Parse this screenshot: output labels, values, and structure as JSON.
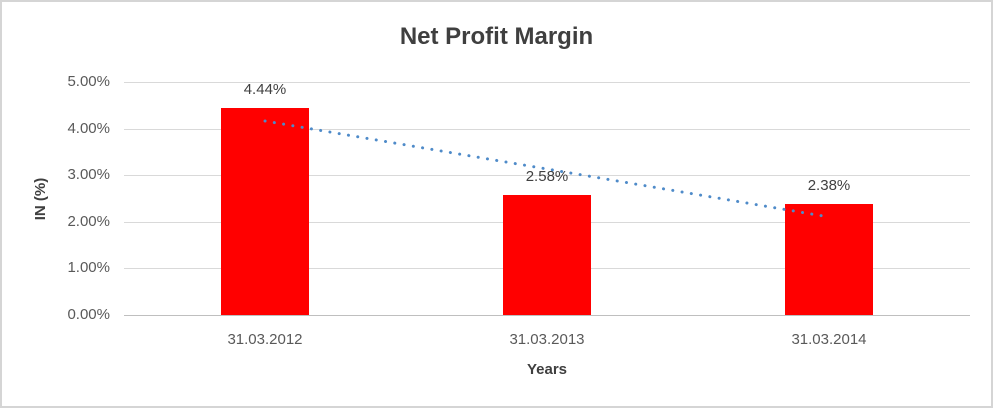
{
  "chart_data": {
    "type": "bar",
    "title": "Net Profit Margin",
    "categories": [
      "31.03.2012",
      "31.03.2013",
      "31.03.2014"
    ],
    "values": [
      4.44,
      2.58,
      2.38
    ],
    "data_labels": [
      "4.44%",
      "2.58%",
      "2.38%"
    ],
    "xlabel": "Years",
    "ylabel": "IN (%)",
    "y_ticks": [
      {
        "label": "5.00%",
        "value": 5
      },
      {
        "label": "4.00%",
        "value": 4
      },
      {
        "label": "3.00%",
        "value": 3
      },
      {
        "label": "2.00%",
        "value": 2
      },
      {
        "label": "1.00%",
        "value": 1
      },
      {
        "label": "0.00%",
        "value": 0
      }
    ],
    "ylim": [
      0,
      5
    ],
    "grid": true,
    "legend": false,
    "trendline": {
      "type": "linear",
      "style": "dotted"
    },
    "colors": {
      "bar": "#FF0000",
      "trendline": "#4F8BC9",
      "title_text": "#3F3F3F",
      "tick_text": "#595959",
      "gridline": "#D9D9D9",
      "axis_line": "#BFBFBF",
      "frame_border": "#D5D5D5"
    }
  }
}
